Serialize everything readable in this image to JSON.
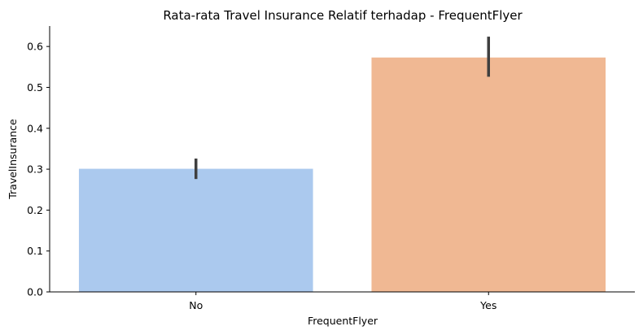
{
  "chart_data": {
    "type": "bar",
    "title": "Rata-rata Travel Insurance Relatif terhadap - FrequentFlyer",
    "xlabel": "FrequentFlyer",
    "ylabel": "TravelInsurance",
    "categories": [
      "No",
      "Yes"
    ],
    "values": [
      0.301,
      0.573
    ],
    "error_bars": [
      {
        "low": 0.276,
        "high": 0.326
      },
      {
        "low": 0.526,
        "high": 0.624
      }
    ],
    "colors": [
      "#abc9ee",
      "#f0b893"
    ],
    "error_bar_color": "#3f3f3f",
    "ylim": [
      0,
      0.65
    ],
    "yticks": [
      0.0,
      0.1,
      0.2,
      0.3,
      0.4,
      0.5,
      0.6
    ],
    "ytick_labels": [
      "0.0",
      "0.1",
      "0.2",
      "0.3",
      "0.4",
      "0.5",
      "0.6"
    ],
    "grid": false,
    "legend": "none"
  }
}
